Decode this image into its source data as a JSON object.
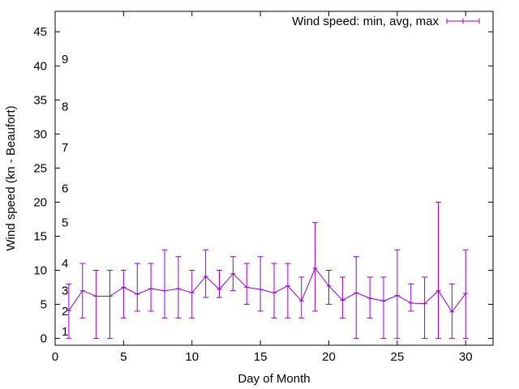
{
  "chart_data": {
    "type": "line",
    "title": "",
    "xlabel": "Day of Month",
    "ylabel": "Wind speed (kn - Beaufort)",
    "xlim": [
      0,
      32
    ],
    "ylim": [
      -1,
      48
    ],
    "x_ticks": [
      0,
      5,
      10,
      15,
      20,
      25,
      30
    ],
    "y_ticks": [
      0,
      5,
      10,
      15,
      20,
      25,
      30,
      35,
      40,
      45
    ],
    "grid": false,
    "legend_position": "top-right",
    "series_color": "#9400d3",
    "series": [
      {
        "name": "Wind speed: min, avg, max",
        "x": [
          1,
          2,
          3,
          4,
          5,
          6,
          7,
          8,
          9,
          10,
          11,
          12,
          13,
          14,
          15,
          16,
          17,
          18,
          19,
          20,
          21,
          22,
          23,
          24,
          25,
          26,
          27,
          28,
          29,
          30
        ],
        "avg": [
          4.1,
          7.0,
          6.2,
          6.2,
          7.5,
          6.5,
          7.3,
          7.0,
          7.3,
          6.7,
          9.1,
          7.2,
          9.5,
          7.5,
          7.2,
          6.7,
          7.7,
          5.5,
          10.3,
          7.7,
          5.6,
          6.7,
          5.9,
          5.5,
          6.3,
          5.2,
          5.1,
          7.0,
          3.9,
          6.6
        ],
        "min": [
          0,
          3,
          0,
          0,
          3,
          4,
          4,
          3,
          3,
          3,
          6,
          6,
          7,
          5,
          4,
          3,
          3,
          3,
          4,
          5,
          3,
          0,
          3,
          0,
          0,
          4,
          0,
          0,
          0,
          0
        ],
        "max": [
          8,
          11,
          10,
          10,
          10,
          11,
          11,
          13,
          12,
          10,
          13,
          10,
          12,
          11,
          12,
          11,
          11,
          9,
          17,
          10,
          9,
          12,
          9,
          9,
          13,
          8,
          9,
          20,
          8,
          13
        ]
      }
    ],
    "beaufort_labels": [
      {
        "label": "1",
        "value": 1
      },
      {
        "label": "2",
        "value": 4
      },
      {
        "label": "3",
        "value": 7
      },
      {
        "label": "4",
        "value": 11
      },
      {
        "label": "5",
        "value": 17
      },
      {
        "label": "6",
        "value": 22
      },
      {
        "label": "7",
        "value": 28
      },
      {
        "label": "8",
        "value": 34
      },
      {
        "label": "9",
        "value": 41
      }
    ]
  }
}
